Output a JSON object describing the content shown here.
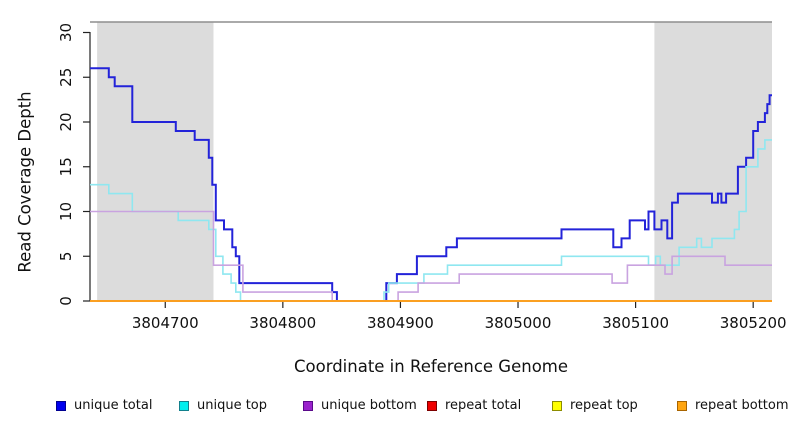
{
  "chart_data": {
    "type": "line",
    "subtype": "step",
    "title": "",
    "xlabel": "Coordinate in Reference Genome",
    "ylabel": "Read Coverage Depth",
    "xlim": [
      3804636,
      3805216
    ],
    "ylim": [
      0,
      31
    ],
    "x_ticks": [
      3804700,
      3804800,
      3804900,
      3805000,
      3805100,
      3805200
    ],
    "y_ticks": [
      0,
      5,
      10,
      15,
      20,
      25,
      30
    ],
    "grid": false,
    "legend_position": "bottom",
    "shade_color": "#dcdcdc",
    "shaded_regions": [
      {
        "from": 3804642,
        "to": 3804741
      },
      {
        "from": 3805116,
        "to": 3805216
      }
    ],
    "series": [
      {
        "id": "unique-total",
        "name": "unique total",
        "line_color": "#2323d9",
        "legend_fill": "#0000ee",
        "legend_border": "#000090",
        "width": 2,
        "points": [
          [
            3804636,
            26
          ],
          [
            3804652,
            25
          ],
          [
            3804657,
            24
          ],
          [
            3804672,
            20
          ],
          [
            3804709,
            19
          ],
          [
            3804725,
            18
          ],
          [
            3804737,
            16
          ],
          [
            3804740,
            13
          ],
          [
            3804743,
            9
          ],
          [
            3804750,
            8
          ],
          [
            3804757,
            6
          ],
          [
            3804760,
            5
          ],
          [
            3804763,
            2
          ],
          [
            3804842,
            1
          ],
          [
            3804846,
            0
          ],
          [
            3804888,
            2
          ],
          [
            3804897,
            3
          ],
          [
            3804914,
            5
          ],
          [
            3804939,
            6
          ],
          [
            3804948,
            7
          ],
          [
            3805037,
            8
          ],
          [
            3805081,
            6
          ],
          [
            3805088,
            7
          ],
          [
            3805095,
            9
          ],
          [
            3805108,
            8
          ],
          [
            3805111,
            10
          ],
          [
            3805116,
            8
          ],
          [
            3805122,
            9
          ],
          [
            3805127,
            7
          ],
          [
            3805131,
            11
          ],
          [
            3805136,
            12
          ],
          [
            3805165,
            11
          ],
          [
            3805170,
            12
          ],
          [
            3805173,
            11
          ],
          [
            3805177,
            12
          ],
          [
            3805187,
            15
          ],
          [
            3805194,
            16
          ],
          [
            3805200,
            19
          ],
          [
            3805204,
            20
          ],
          [
            3805210,
            21
          ],
          [
            3805212,
            22
          ],
          [
            3805214,
            23
          ],
          [
            3805216,
            23
          ]
        ]
      },
      {
        "id": "unique-top",
        "name": "unique top",
        "line_color": "#8fe7f0",
        "legend_fill": "#00eeee",
        "legend_border": "#12808c",
        "width": 1.6,
        "points": [
          [
            3804636,
            13
          ],
          [
            3804652,
            12
          ],
          [
            3804672,
            10
          ],
          [
            3804711,
            9
          ],
          [
            3804737,
            8
          ],
          [
            3804743,
            5
          ],
          [
            3804749,
            3
          ],
          [
            3804756,
            2
          ],
          [
            3804760,
            1
          ],
          [
            3804764,
            0
          ],
          [
            3804886,
            1
          ],
          [
            3804890,
            2
          ],
          [
            3804920,
            3
          ],
          [
            3804940,
            4
          ],
          [
            3805037,
            5
          ],
          [
            3805111,
            4
          ],
          [
            3805117,
            5
          ],
          [
            3805121,
            4
          ],
          [
            3805137,
            6
          ],
          [
            3805152,
            7
          ],
          [
            3805156,
            6
          ],
          [
            3805165,
            7
          ],
          [
            3805184,
            8
          ],
          [
            3805188,
            10
          ],
          [
            3805194,
            15
          ],
          [
            3805204,
            17
          ],
          [
            3805210,
            18
          ],
          [
            3805216,
            18
          ]
        ]
      },
      {
        "id": "unique-bottom",
        "name": "unique bottom",
        "line_color": "#c9a3e0",
        "legend_fill": "#9a22cc",
        "legend_border": "#5a0a8a",
        "width": 1.6,
        "points": [
          [
            3804636,
            10
          ],
          [
            3804741,
            4
          ],
          [
            3804766,
            1
          ],
          [
            3804842,
            0
          ],
          [
            3804898,
            1
          ],
          [
            3804915,
            2
          ],
          [
            3804950,
            3
          ],
          [
            3805080,
            2
          ],
          [
            3805093,
            4
          ],
          [
            3805125,
            3
          ],
          [
            3805131,
            5
          ],
          [
            3805176,
            4
          ],
          [
            3805216,
            4
          ]
        ]
      },
      {
        "id": "repeat-total",
        "name": "repeat total",
        "line_color": "#d42020",
        "legend_fill": "#ee0000",
        "legend_border": "#7d0000",
        "width": 1.6,
        "points": [
          [
            3804636,
            0
          ],
          [
            3805216,
            0
          ]
        ]
      },
      {
        "id": "repeat-top",
        "name": "repeat top",
        "line_color": "#f2f200",
        "legend_fill": "#ffff00",
        "legend_border": "#8c8c00",
        "width": 1.6,
        "points": [
          [
            3804636,
            0
          ],
          [
            3805216,
            0
          ]
        ]
      },
      {
        "id": "repeat-bottom",
        "name": "repeat bottom",
        "line_color": "#ff9d1e",
        "legend_fill": "#ffa510",
        "legend_border": "#a86400",
        "width": 1.8,
        "points": [
          [
            3804636,
            0
          ],
          [
            3805216,
            0
          ]
        ]
      }
    ]
  },
  "colors": {
    "axis": "#222222",
    "tick_label": "#111111",
    "plot_top_border": "#8e8e8e"
  }
}
